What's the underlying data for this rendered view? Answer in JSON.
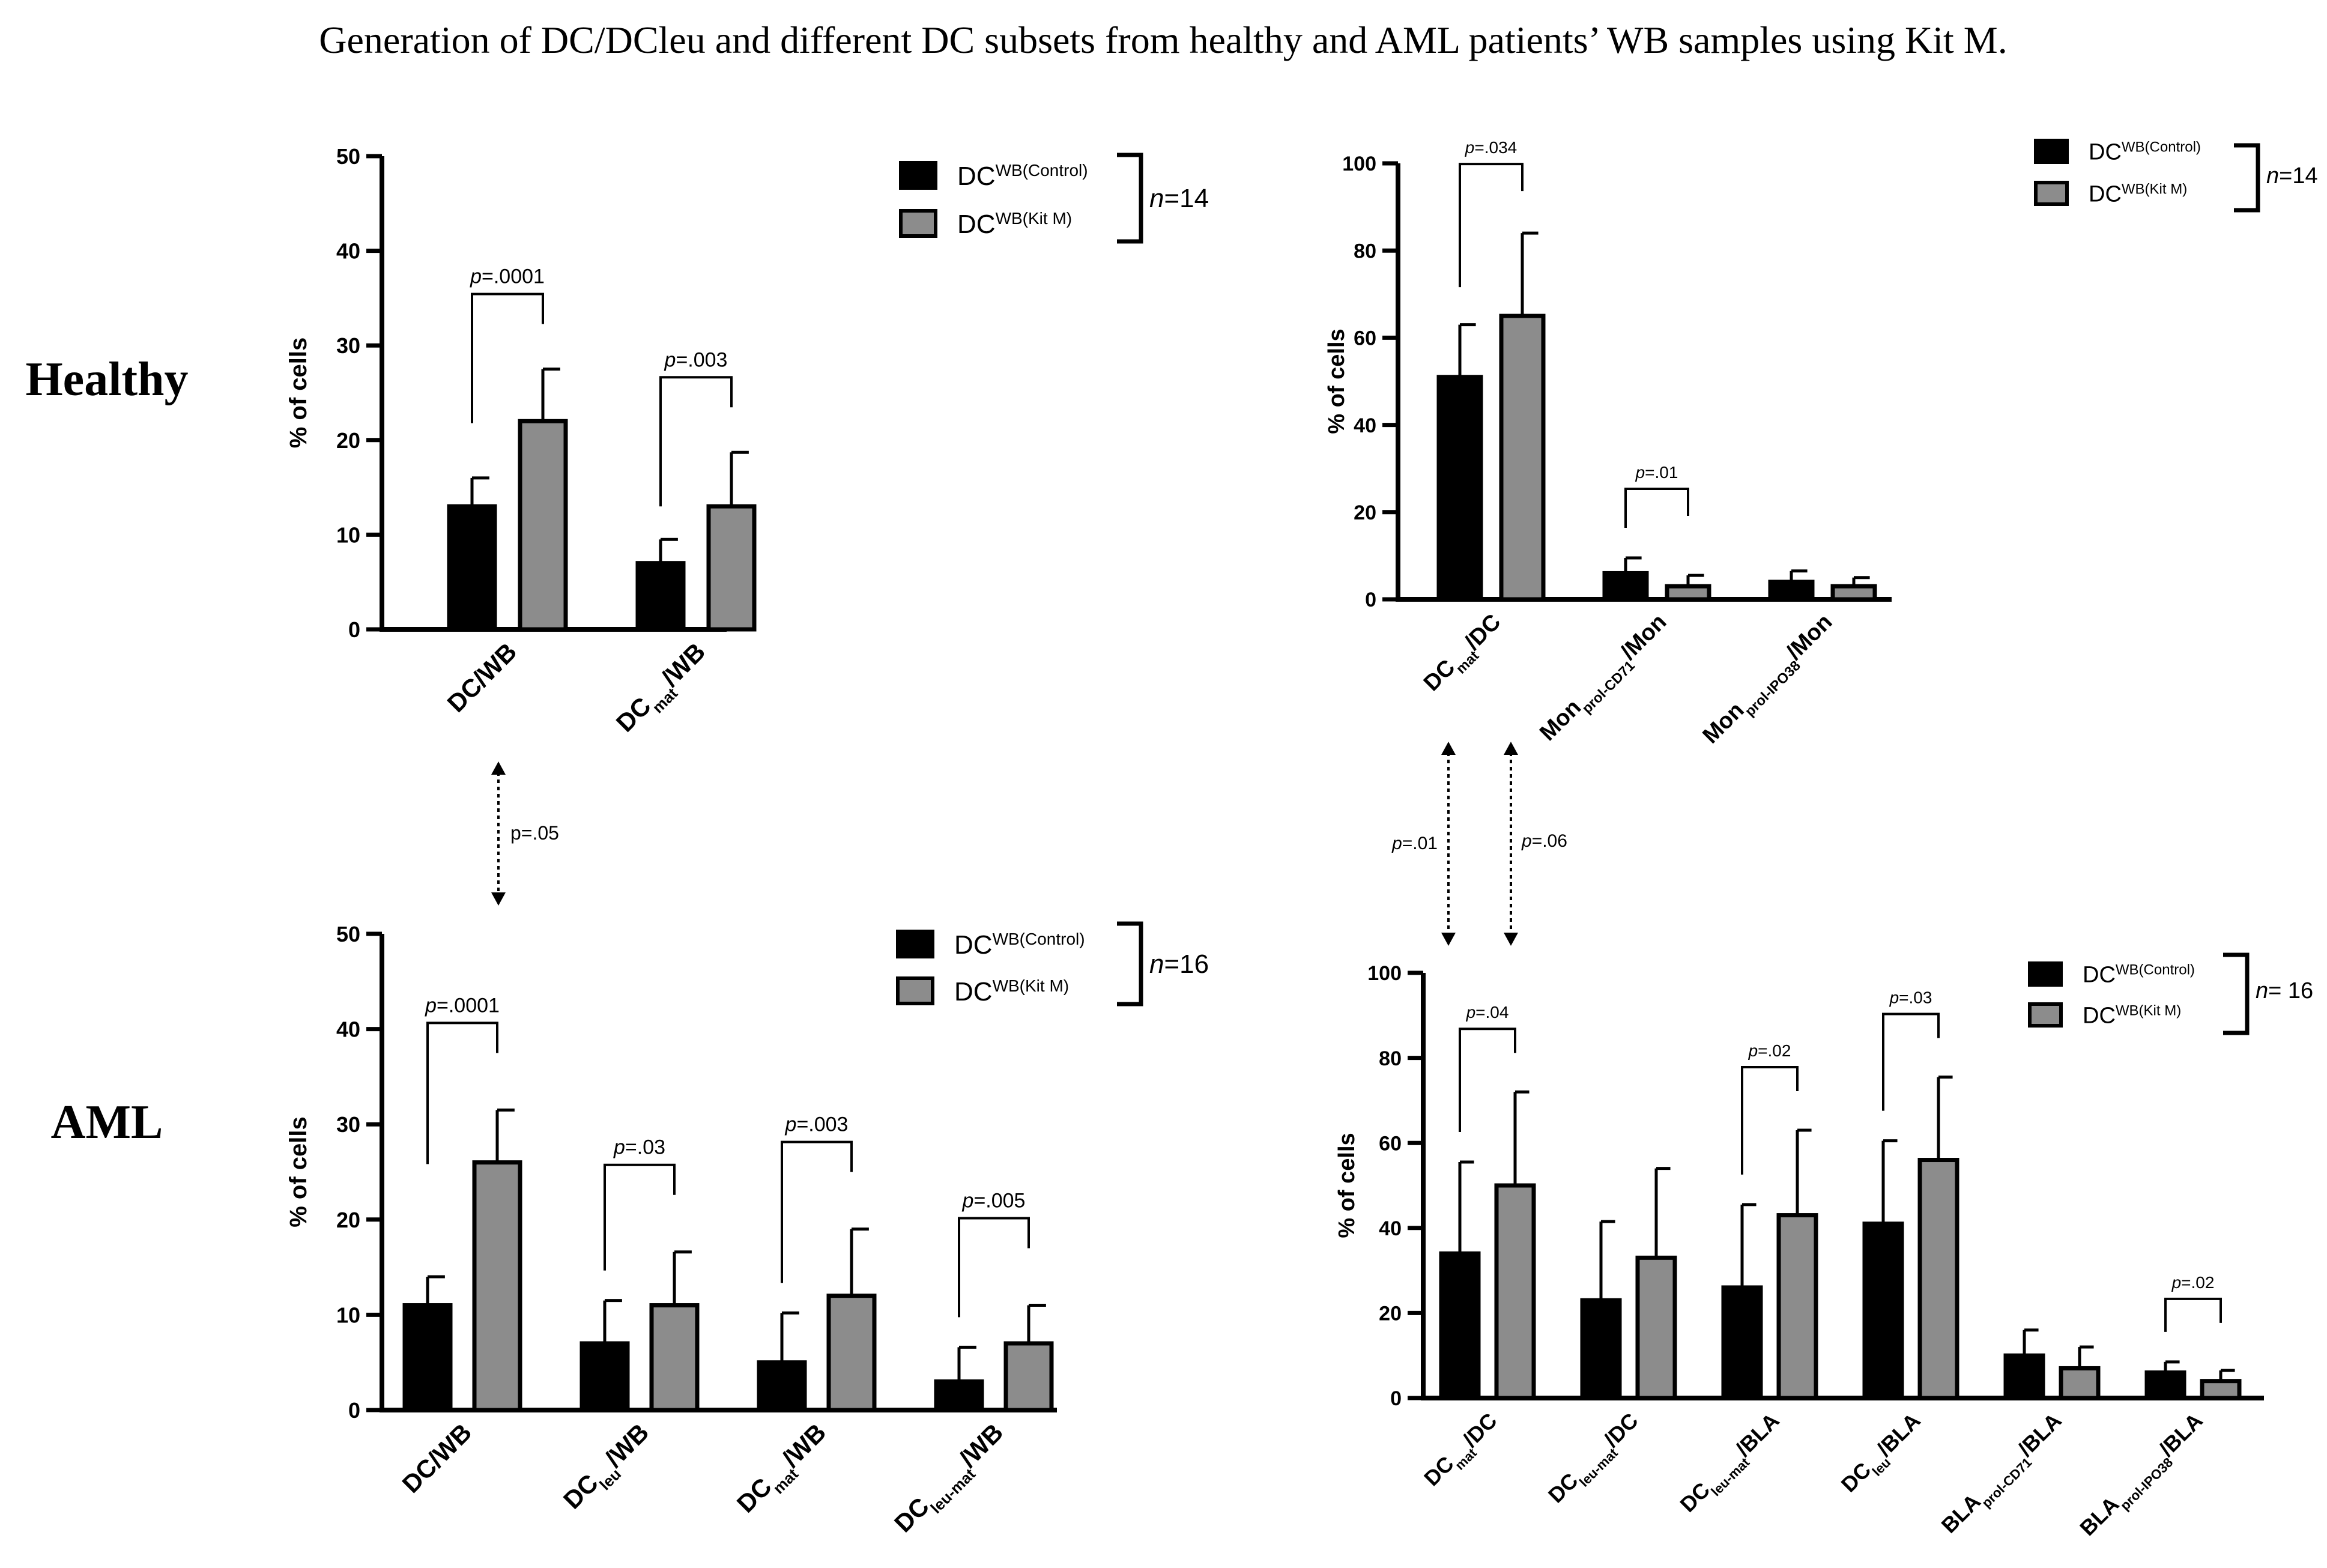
{
  "figure": {
    "title": "Generation of DC/DCleu and different DC subsets from healthy and AML patients’ WB samples using Kit M.",
    "row_labels": [
      "Healthy",
      "AML"
    ]
  },
  "colors": {
    "control": "#000000",
    "kitm": "#8c8c8c",
    "axis": "#000000"
  },
  "chart_data": [
    {
      "id": "healthy-wb",
      "type": "bar",
      "ylabel": "% of cells",
      "ylim": [
        0,
        50
      ],
      "yticks": [
        0,
        10,
        20,
        30,
        40,
        50
      ],
      "categories": [
        {
          "main": "DC/WB"
        },
        {
          "main": "DC",
          "sub": "mat",
          "tail": "/WB"
        }
      ],
      "series": [
        {
          "name": "DC",
          "sup": "WB(Control)",
          "values": [
            13,
            7
          ],
          "errors": [
            3,
            2.5
          ]
        },
        {
          "name": "DC",
          "sup": "WB(Kit M)",
          "values": [
            22,
            13
          ],
          "errors": [
            5.5,
            5.7
          ]
        }
      ],
      "significance": [
        {
          "category": 0,
          "p": "p",
          "rest": "=.0001",
          "from": 1,
          "to": 1
        },
        {
          "category": 1,
          "p": "p",
          "rest": "=.003",
          "from": 1,
          "to": 1
        }
      ],
      "n_label": "n",
      "n_value": "=14"
    },
    {
      "id": "healthy-dc",
      "type": "bar",
      "ylabel": "% of cells",
      "ylim": [
        0,
        100
      ],
      "yticks": [
        0,
        20,
        40,
        60,
        80,
        100
      ],
      "categories": [
        {
          "main": "DC",
          "sub": "mat",
          "tail": "/DC"
        },
        {
          "main": "Mon",
          "sub": "prol-CD71",
          "tail": "/Mon"
        },
        {
          "main": "Mon",
          "sub": "prol-IPO38",
          "tail": "/Mon"
        }
      ],
      "series": [
        {
          "name": "DC",
          "sup": "WB(Control)",
          "values": [
            51,
            6,
            4
          ],
          "errors": [
            12,
            3.5,
            2.5
          ]
        },
        {
          "name": "DC",
          "sup": "WB(Kit M)",
          "values": [
            65,
            3,
            3
          ],
          "errors": [
            19,
            2.5,
            2
          ]
        }
      ],
      "significance": [
        {
          "category": 0,
          "p": "p",
          "rest": "=.034"
        },
        {
          "category": 1,
          "p": "p",
          "rest": "=.01"
        }
      ],
      "n_label": "n",
      "n_value": "=14"
    },
    {
      "id": "aml-wb",
      "type": "bar",
      "ylabel": "% of cells",
      "ylim": [
        0,
        50
      ],
      "yticks": [
        0,
        10,
        20,
        30,
        40,
        50
      ],
      "categories": [
        {
          "main": "DC/WB"
        },
        {
          "main": "DC",
          "sub": "leu",
          "tail": "/WB"
        },
        {
          "main": "DC",
          "sub": "mat",
          "tail": "/WB"
        },
        {
          "main": "DC",
          "sub": "leu-mat",
          "tail": "/WB"
        }
      ],
      "series": [
        {
          "name": "DC",
          "sup": "WB(Control)",
          "values": [
            11,
            7,
            5,
            3
          ],
          "errors": [
            3,
            4.5,
            5.2,
            3.6
          ]
        },
        {
          "name": "DC",
          "sup": "WB(Kit M)",
          "values": [
            26,
            11,
            12,
            7
          ],
          "errors": [
            5.5,
            5.6,
            7,
            4
          ]
        }
      ],
      "significance": [
        {
          "category": 0,
          "p": "p",
          "rest": "=.0001"
        },
        {
          "category": 1,
          "p": "p",
          "rest": "=.03"
        },
        {
          "category": 2,
          "p": "p",
          "rest": "=.003"
        },
        {
          "category": 3,
          "p": "p",
          "rest": "=.005"
        }
      ],
      "n_label": "n",
      "n_value": "=16"
    },
    {
      "id": "aml-dc",
      "type": "bar",
      "ylabel": "% of cells",
      "ylim": [
        0,
        100
      ],
      "yticks": [
        0,
        20,
        40,
        60,
        80,
        100
      ],
      "categories": [
        {
          "main": "DC",
          "sub": "mat",
          "tail": "/DC"
        },
        {
          "main": "DC",
          "sub": "leu-mat",
          "tail": "/DC"
        },
        {
          "main": "DC",
          "sub": "leu-mat",
          "tail": "/BLA"
        },
        {
          "main": "DC",
          "sub": "leu",
          "tail": "/BLA"
        },
        {
          "main": "BLA",
          "sub": "prol-CD71",
          "tail": "/BLA"
        },
        {
          "main": "BLA",
          "sub": "prol-IPO38",
          "tail": "/BLA"
        }
      ],
      "series": [
        {
          "name": "DC",
          "sup": "WB(Control)",
          "values": [
            34,
            23,
            26,
            41,
            10,
            6
          ],
          "errors": [
            21.5,
            18.5,
            19.5,
            19.5,
            6,
            2.5
          ]
        },
        {
          "name": "DC",
          "sup": "WB(Kit M)",
          "values": [
            50,
            33,
            43,
            56,
            7,
            4
          ],
          "errors": [
            22,
            21,
            20,
            19.5,
            5,
            2.5
          ]
        }
      ],
      "significance": [
        {
          "category": 0,
          "p": "p",
          "rest": "=.04"
        },
        {
          "category": 2,
          "p": "p",
          "rest": "=.02"
        },
        {
          "category": 3,
          "p": "p",
          "rest": "=.03"
        },
        {
          "category": 5,
          "p": "p",
          "rest": "=.02"
        }
      ],
      "n_label": "n",
      "n_value": "= 16"
    }
  ],
  "cross_comparisons": [
    {
      "id": "wb-compare",
      "label": "p=.05"
    },
    {
      "id": "dcmat-compare",
      "p": "p",
      "rest": "=.01"
    },
    {
      "id": "dcleumat-compare",
      "p": "p",
      "rest": "=.06"
    }
  ]
}
